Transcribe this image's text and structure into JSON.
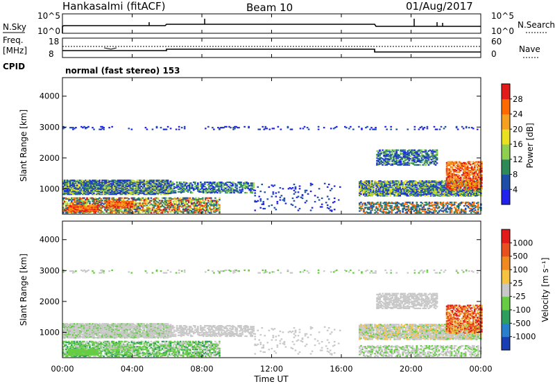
{
  "header": {
    "station": "Hankasalmi (fitACF)",
    "beam": "Beam 10",
    "date": "01/Aug/2017"
  },
  "nsky_panel": {
    "left_label": "N.Sky",
    "left_ticks": [
      "10^5",
      "10^0"
    ],
    "right_label": "N.Search",
    "right_ticks": [
      "10^5",
      "10^0"
    ]
  },
  "freq_panel": {
    "left_label_line1": "Freq.",
    "left_label_line2": "[MHz]",
    "left_ticks": [
      "18",
      "8"
    ],
    "right_label": "Nave",
    "right_ticks": [
      "60",
      "0"
    ]
  },
  "cpid": {
    "label": "CPID",
    "value": "normal (fast stereo) 153"
  },
  "chart_data": [
    {
      "type": "heatmap",
      "name": "power",
      "x_unit": "hours UT",
      "xlim": [
        0,
        24
      ],
      "ylabel": "Slant Range [km]",
      "ylim": [
        180,
        4600
      ],
      "y_ticks": [
        "1000",
        "2000",
        "3000",
        "4000"
      ],
      "colorbar_label": "Power [dB]",
      "colorbar_ticks": [
        "4",
        "8",
        "12",
        "16",
        "20",
        "24",
        "28"
      ],
      "colorbar_colors": [
        "#2222ee",
        "#1d4fa8",
        "#2e8b57",
        "#8fcf4f",
        "#e8e020",
        "#f5a020",
        "#ff6a00",
        "#e21a1a"
      ]
    },
    {
      "type": "heatmap",
      "name": "velocity",
      "x_unit": "hours UT",
      "xlim": [
        0,
        24
      ],
      "ylabel": "Slant Range [km]",
      "ylim": [
        180,
        4600
      ],
      "y_ticks": [
        "1000",
        "2000",
        "3000",
        "4000"
      ],
      "colorbar_label": "Velocity [m s⁻¹]",
      "colorbar_ticks": [
        "1000",
        "500",
        "100",
        "25",
        "-25",
        "-100",
        "-500",
        "-1000"
      ],
      "colorbar_colors": [
        "#1a3fb5",
        "#2a7fcc",
        "#2e9e5e",
        "#66cc44",
        "#c8c8c8",
        "#f5c242",
        "#f08a20",
        "#e85020",
        "#e21a1a"
      ]
    }
  ],
  "time_axis": {
    "ticks": [
      "00:00",
      "04:00",
      "08:00",
      "12:00",
      "16:00",
      "20:00",
      "00:00"
    ],
    "label": "Time UT"
  },
  "colors": {
    "grey_scatter": "#c8c8c8",
    "frame": "#000000"
  }
}
